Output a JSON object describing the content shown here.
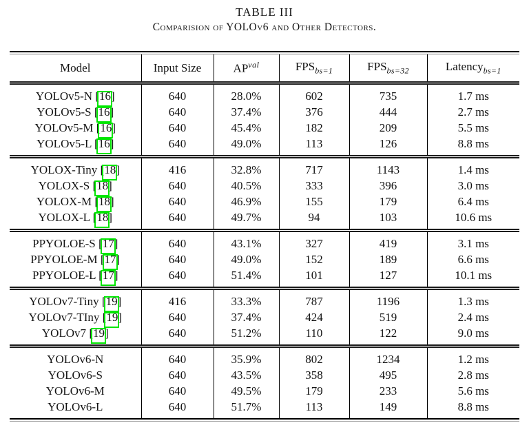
{
  "page": {
    "caption_label": "TABLE III",
    "caption_title": "Comparision of YOLOv6 and Other Detectors."
  },
  "table": {
    "link_box_color": "#00e600",
    "columns": [
      {
        "label": "Model",
        "sup": "",
        "sub": ""
      },
      {
        "label": "Input Size",
        "sup": "",
        "sub": ""
      },
      {
        "label": "AP",
        "sup": "val",
        "sub": ""
      },
      {
        "label": "FPS",
        "sup": "",
        "sub": "bs=1"
      },
      {
        "label": "FPS",
        "sup": "",
        "sub": "bs=32"
      },
      {
        "label": "Latency",
        "sup": "",
        "sub": "bs=1"
      }
    ],
    "groups": [
      {
        "rows": [
          {
            "model": "YOLOv5-N",
            "cite": "16",
            "input_size": "640",
            "ap_val": "28.0%",
            "fps_bs1": "602",
            "fps_bs32": "735",
            "latency_bs1": "1.7 ms"
          },
          {
            "model": "YOLOv5-S",
            "cite": "16",
            "input_size": "640",
            "ap_val": "37.4%",
            "fps_bs1": "376",
            "fps_bs32": "444",
            "latency_bs1": "2.7 ms"
          },
          {
            "model": "YOLOv5-M",
            "cite": "16",
            "input_size": "640",
            "ap_val": "45.4%",
            "fps_bs1": "182",
            "fps_bs32": "209",
            "latency_bs1": "5.5 ms"
          },
          {
            "model": "YOLOv5-L",
            "cite": "16",
            "input_size": "640",
            "ap_val": "49.0%",
            "fps_bs1": "113",
            "fps_bs32": "126",
            "latency_bs1": "8.8 ms"
          }
        ]
      },
      {
        "rows": [
          {
            "model": "YOLOX-Tiny",
            "cite": "18",
            "input_size": "416",
            "ap_val": "32.8%",
            "fps_bs1": "717",
            "fps_bs32": "1143",
            "latency_bs1": "1.4 ms"
          },
          {
            "model": "YOLOX-S",
            "cite": "18",
            "input_size": "640",
            "ap_val": "40.5%",
            "fps_bs1": "333",
            "fps_bs32": "396",
            "latency_bs1": "3.0 ms"
          },
          {
            "model": "YOLOX-M",
            "cite": "18",
            "input_size": "640",
            "ap_val": "46.9%",
            "fps_bs1": "155",
            "fps_bs32": "179",
            "latency_bs1": "6.4 ms"
          },
          {
            "model": "YOLOX-L",
            "cite": "18",
            "input_size": "640",
            "ap_val": "49.7%",
            "fps_bs1": "94",
            "fps_bs32": "103",
            "latency_bs1": "10.6 ms"
          }
        ]
      },
      {
        "rows": [
          {
            "model": "PPYOLOE-S",
            "cite": "17",
            "input_size": "640",
            "ap_val": "43.1%",
            "fps_bs1": "327",
            "fps_bs32": "419",
            "latency_bs1": "3.1 ms"
          },
          {
            "model": "PPYOLOE-M",
            "cite": "17",
            "input_size": "640",
            "ap_val": "49.0%",
            "fps_bs1": "152",
            "fps_bs32": "189",
            "latency_bs1": "6.6 ms"
          },
          {
            "model": "PPYOLOE-L",
            "cite": "17",
            "input_size": "640",
            "ap_val": "51.4%",
            "fps_bs1": "101",
            "fps_bs32": "127",
            "latency_bs1": "10.1 ms"
          }
        ]
      },
      {
        "rows": [
          {
            "model": "YOLOv7-Tiny",
            "cite": "19",
            "input_size": "416",
            "ap_val": "33.3%",
            "fps_bs1": "787",
            "fps_bs32": "1196",
            "latency_bs1": "1.3 ms"
          },
          {
            "model": "YOLOv7-TIny",
            "cite": "19",
            "input_size": "640",
            "ap_val": "37.4%",
            "fps_bs1": "424",
            "fps_bs32": "519",
            "latency_bs1": "2.4 ms"
          },
          {
            "model": "YOLOv7",
            "cite": "19",
            "input_size": "640",
            "ap_val": "51.2%",
            "fps_bs1": "110",
            "fps_bs32": "122",
            "latency_bs1": "9.0 ms"
          }
        ]
      },
      {
        "rows": [
          {
            "model": "YOLOv6-N",
            "cite": null,
            "input_size": "640",
            "ap_val": "35.9%",
            "fps_bs1": "802",
            "fps_bs32": "1234",
            "latency_bs1": "1.2 ms"
          },
          {
            "model": "YOLOv6-S",
            "cite": null,
            "input_size": "640",
            "ap_val": "43.5%",
            "fps_bs1": "358",
            "fps_bs32": "495",
            "latency_bs1": "2.8 ms"
          },
          {
            "model": "YOLOv6-M",
            "cite": null,
            "input_size": "640",
            "ap_val": "49.5%",
            "fps_bs1": "179",
            "fps_bs32": "233",
            "latency_bs1": "5.6 ms"
          },
          {
            "model": "YOLOv6-L",
            "cite": null,
            "input_size": "640",
            "ap_val": "51.7%",
            "fps_bs1": "113",
            "fps_bs32": "149",
            "latency_bs1": "8.8 ms"
          }
        ]
      }
    ]
  }
}
